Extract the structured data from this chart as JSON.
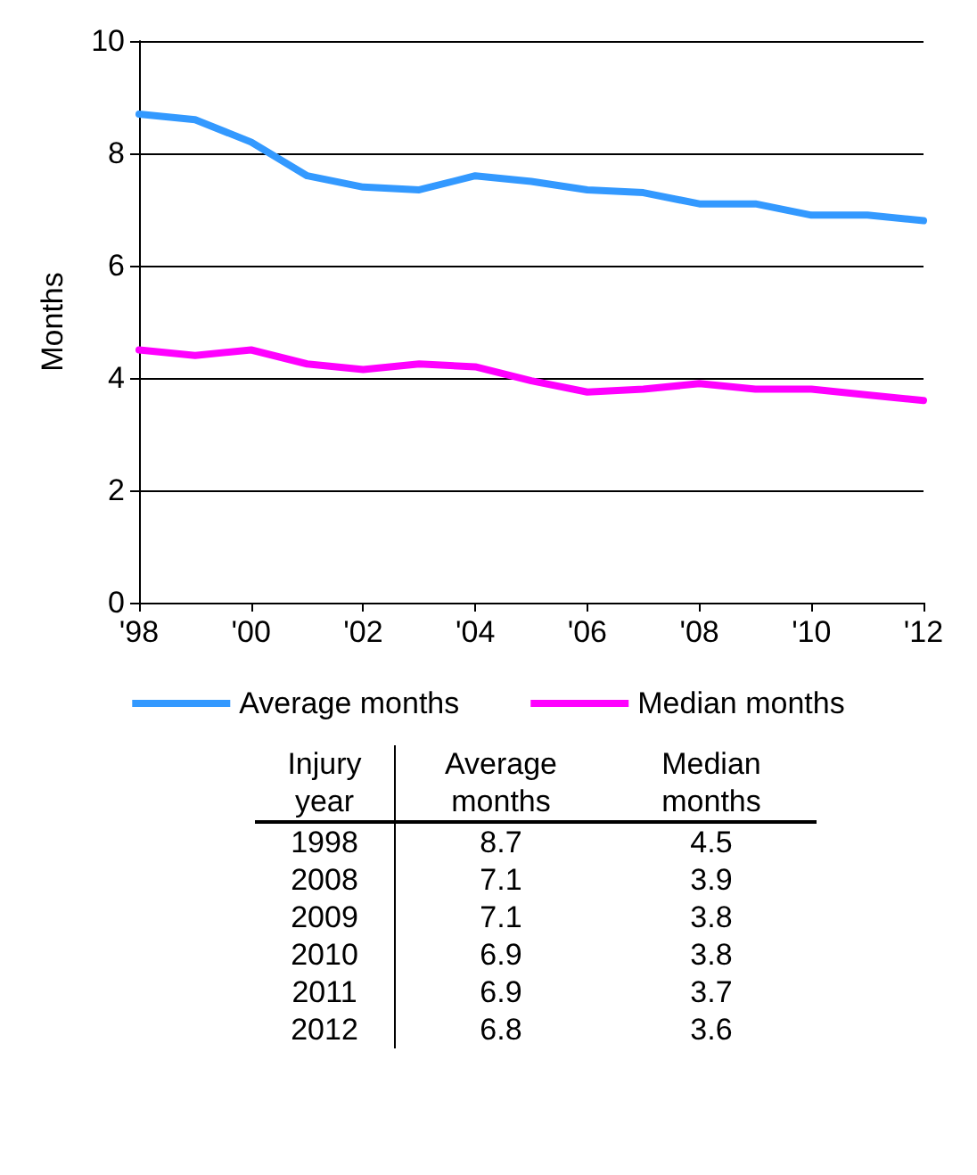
{
  "chart_data": {
    "type": "line",
    "ylabel": "Months",
    "x": [
      1998,
      1999,
      2000,
      2001,
      2002,
      2003,
      2004,
      2005,
      2006,
      2007,
      2008,
      2009,
      2010,
      2011,
      2012
    ],
    "xlim": [
      1998,
      2012
    ],
    "xticks": [
      {
        "value": 1998,
        "label": "'98"
      },
      {
        "value": 2000,
        "label": "'00"
      },
      {
        "value": 2002,
        "label": "'02"
      },
      {
        "value": 2004,
        "label": "'04"
      },
      {
        "value": 2006,
        "label": "'06"
      },
      {
        "value": 2008,
        "label": "'08"
      },
      {
        "value": 2010,
        "label": "'10"
      },
      {
        "value": 2012,
        "label": "'12"
      }
    ],
    "ylim": [
      0,
      10
    ],
    "yticks": [
      0,
      2,
      4,
      6,
      8,
      10
    ],
    "grid": "y",
    "legend": "bottom",
    "marker": "none",
    "line_style": "solid",
    "annotations": [
      "Injury year",
      "1998",
      "8.7",
      "4.5",
      "2008",
      "7.1",
      "3.9",
      "2009",
      "7.1",
      "3.8",
      "2010",
      "6.9",
      "3.8",
      "2011",
      "6.9",
      "3.7",
      "2012",
      "6.8",
      "3.6"
    ],
    "series": [
      {
        "name": "Average months",
        "color": "#3399ff",
        "values": [
          8.7,
          8.6,
          8.2,
          7.6,
          7.4,
          7.35,
          7.6,
          7.5,
          7.35,
          7.3,
          7.1,
          7.1,
          6.9,
          6.9,
          6.8
        ]
      },
      {
        "name": "Median months",
        "color": "#ff00ff",
        "values": [
          4.5,
          4.4,
          4.5,
          4.25,
          4.15,
          4.25,
          4.2,
          3.95,
          3.75,
          3.8,
          3.9,
          3.8,
          3.8,
          3.7,
          3.6
        ]
      }
    ]
  }
}
